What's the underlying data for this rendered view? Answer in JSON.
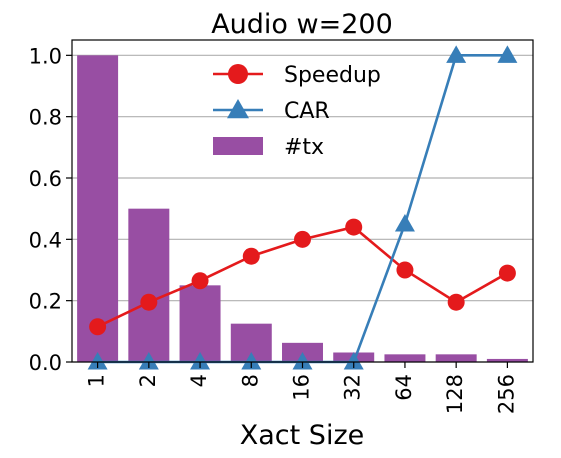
{
  "chart_data": {
    "type": "bar",
    "title": "Audio w=200",
    "xlabel": "Xact Size",
    "ylabel": "",
    "categories": [
      "1",
      "2",
      "4",
      "8",
      "16",
      "32",
      "64",
      "128",
      "256"
    ],
    "ylim": [
      0,
      1.05
    ],
    "yticks": [
      "0.0",
      "0.2",
      "0.4",
      "0.6",
      "0.8",
      "1.0"
    ],
    "grid": "y",
    "legend_position": "top-center",
    "series": [
      {
        "name": "#tx",
        "kind": "bar",
        "color": "#984ea3",
        "values": [
          1.0,
          0.5,
          0.25,
          0.125,
          0.0625,
          0.031,
          0.025,
          0.025,
          0.01
        ]
      },
      {
        "name": "Speedup",
        "kind": "line",
        "marker": "circle",
        "color": "#e41a1c",
        "values": [
          0.115,
          0.195,
          0.265,
          0.345,
          0.4,
          0.44,
          0.3,
          0.195,
          0.29
        ]
      },
      {
        "name": "CAR",
        "kind": "line",
        "marker": "triangle",
        "color": "#377eb8",
        "values": [
          0.0,
          0.0,
          0.0,
          0.0,
          0.0,
          0.0,
          0.45,
          1.0,
          1.0
        ]
      }
    ]
  }
}
